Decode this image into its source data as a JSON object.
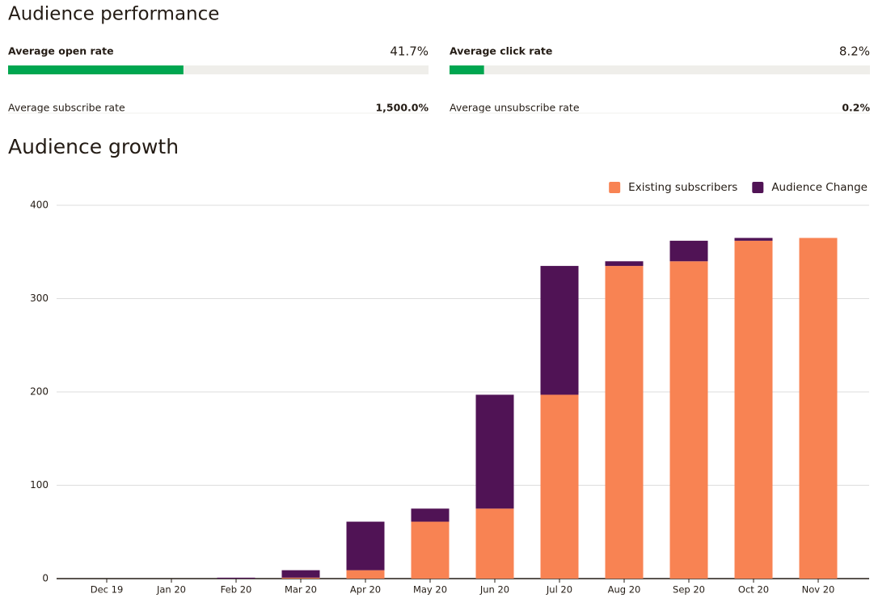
{
  "performance": {
    "title": "Audience performance",
    "primary": [
      {
        "label": "Average open rate",
        "value": 41.7,
        "value_label": "41.7%",
        "color": "#00a650"
      },
      {
        "label": "Average click rate",
        "value": 8.2,
        "value_label": "8.2%",
        "color": "#00a650"
      }
    ],
    "secondary": [
      {
        "label": "Average subscribe rate",
        "value": 1500,
        "value_label": "1,500.0%"
      },
      {
        "label": "Average unsubscribe rate",
        "value": 0.2,
        "value_label": "0.2%"
      }
    ]
  },
  "chart_data": {
    "type": "stacked-bar",
    "title": "Audience growth",
    "categories": [
      "Dec 19",
      "Jan 20",
      "Feb 20",
      "Mar 20",
      "Apr 20",
      "May 20",
      "Jun 20",
      "Jul 20",
      "Aug 20",
      "Sep 20",
      "Oct 20",
      "Nov 20"
    ],
    "series": [
      {
        "name": "Existing subscribers",
        "color": "#f88353",
        "values": [
          0,
          0,
          0,
          1,
          9,
          61,
          75,
          197,
          335,
          340,
          362,
          365
        ]
      },
      {
        "name": "Audience Change",
        "color": "#501355",
        "values": [
          0,
          0,
          1,
          8,
          52,
          14,
          122,
          138,
          5,
          22,
          3,
          0
        ]
      }
    ],
    "ylim": [
      0,
      400
    ],
    "yticks": [
      0,
      100,
      200,
      300,
      400
    ],
    "grid": true,
    "legend": "top-right"
  }
}
